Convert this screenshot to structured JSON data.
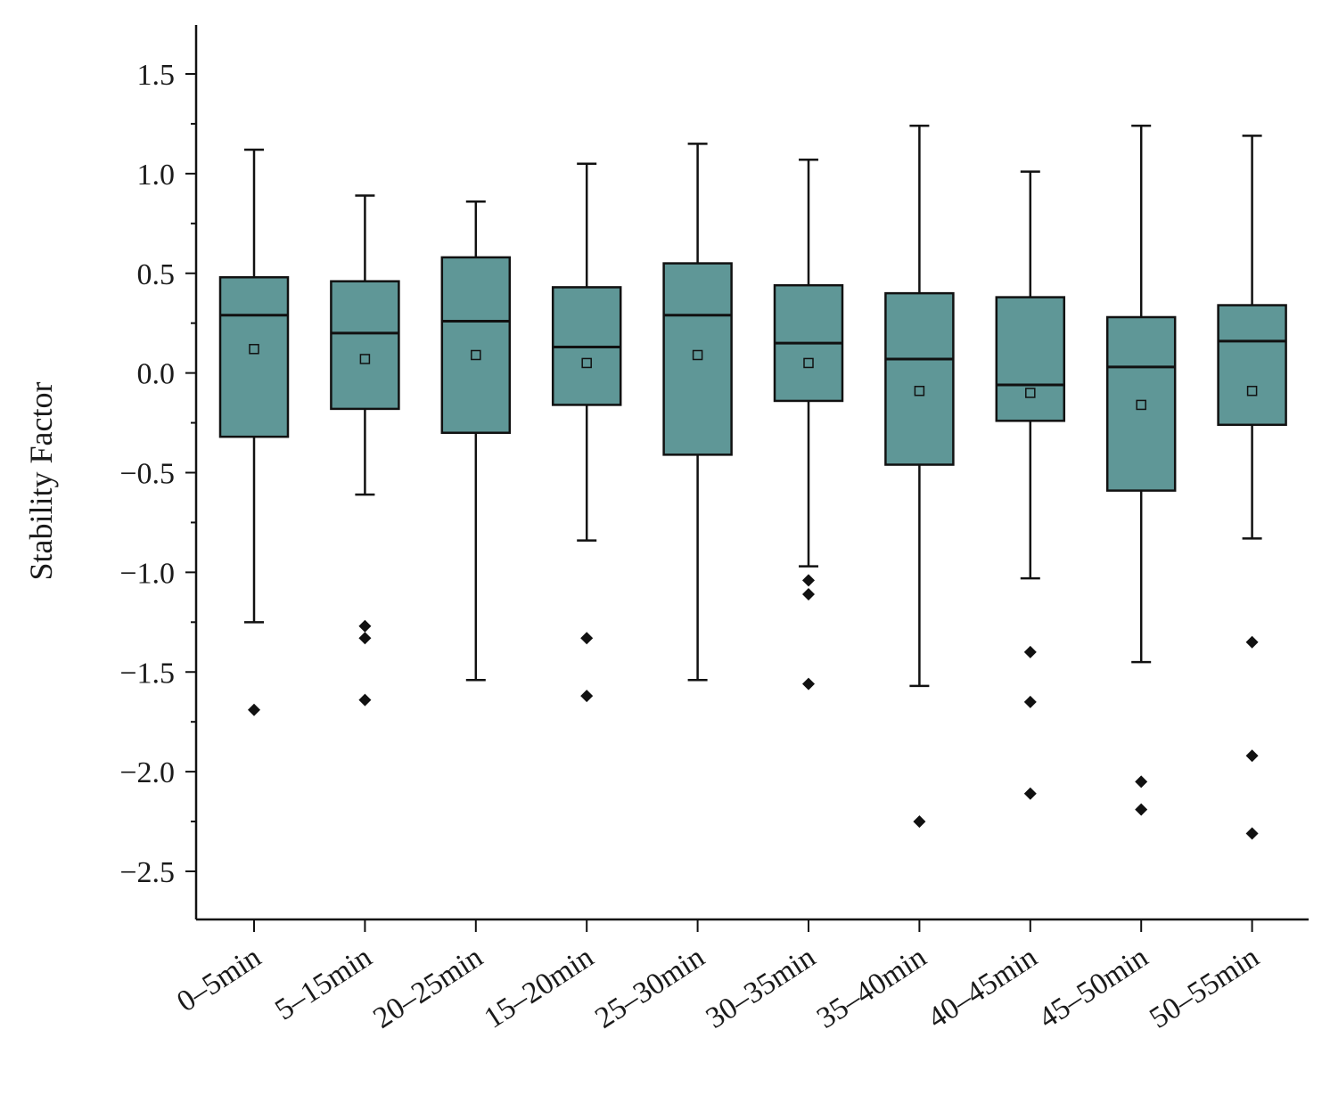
{
  "chart_data": {
    "type": "box",
    "title": "",
    "xlabel": "",
    "ylabel": "Stability Factor",
    "ylim": [
      -2.75,
      1.75
    ],
    "yticks": [
      -2.5,
      -2.0,
      -1.5,
      -1.0,
      -0.5,
      0.0,
      0.5,
      1.0,
      1.5
    ],
    "ytick_labels": [
      "−2.5",
      "−2.0",
      "−1.5",
      "−1.0",
      "−0.5",
      "0.0",
      "0.5",
      "1.0",
      "1.5"
    ],
    "categories": [
      "0–5min",
      "5–15min",
      "20–25min",
      "15–20min",
      "25–30min",
      "30–35min",
      "35–40min",
      "40–45min",
      "45–50min",
      "50–55min"
    ],
    "boxes": [
      {
        "whisker_low": -1.25,
        "q1": -0.32,
        "median": 0.29,
        "q3": 0.48,
        "whisker_high": 1.12,
        "mean": 0.12,
        "outliers": [
          -1.69
        ]
      },
      {
        "whisker_low": -0.61,
        "q1": -0.18,
        "median": 0.2,
        "q3": 0.46,
        "whisker_high": 0.89,
        "mean": 0.07,
        "outliers": [
          -1.27,
          -1.33,
          -1.64
        ]
      },
      {
        "whisker_low": -1.54,
        "q1": -0.3,
        "median": 0.26,
        "q3": 0.58,
        "whisker_high": 0.86,
        "mean": 0.09,
        "outliers": []
      },
      {
        "whisker_low": -0.84,
        "q1": -0.16,
        "median": 0.13,
        "q3": 0.43,
        "whisker_high": 1.05,
        "mean": 0.05,
        "outliers": [
          -1.33,
          -1.62
        ]
      },
      {
        "whisker_low": -1.54,
        "q1": -0.41,
        "median": 0.29,
        "q3": 0.55,
        "whisker_high": 1.15,
        "mean": 0.09,
        "outliers": []
      },
      {
        "whisker_low": -0.97,
        "q1": -0.14,
        "median": 0.15,
        "q3": 0.44,
        "whisker_high": 1.07,
        "mean": 0.05,
        "outliers": [
          -1.04,
          -1.11,
          -1.56
        ]
      },
      {
        "whisker_low": -1.57,
        "q1": -0.46,
        "median": 0.07,
        "q3": 0.4,
        "whisker_high": 1.24,
        "mean": -0.09,
        "outliers": [
          -2.25
        ]
      },
      {
        "whisker_low": -1.03,
        "q1": -0.24,
        "median": -0.06,
        "q3": 0.38,
        "whisker_high": 1.01,
        "mean": -0.1,
        "outliers": [
          -1.4,
          -1.65,
          -2.11
        ]
      },
      {
        "whisker_low": -1.45,
        "q1": -0.59,
        "median": 0.03,
        "q3": 0.28,
        "whisker_high": 1.24,
        "mean": -0.16,
        "outliers": [
          -2.05,
          -2.19
        ]
      },
      {
        "whisker_low": -0.83,
        "q1": -0.26,
        "median": 0.16,
        "q3": 0.34,
        "whisker_high": 1.19,
        "mean": -0.09,
        "outliers": [
          -1.35,
          -1.92,
          -2.31
        ]
      }
    ],
    "grid": false,
    "legend": "none",
    "colors": {
      "box_fill": "#5f9797",
      "stroke": "#111111",
      "outlier": "#111111",
      "mean_marker_fill": "#5f9797"
    }
  }
}
